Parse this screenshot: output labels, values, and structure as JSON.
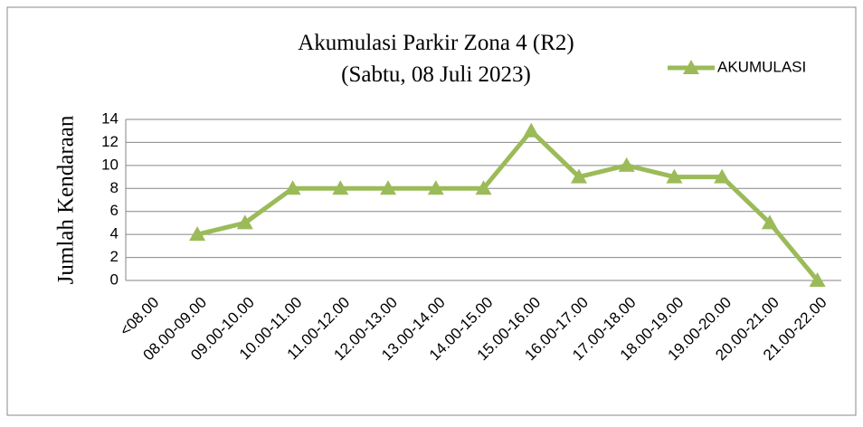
{
  "chart_data": {
    "type": "line",
    "title": "Akumulasi Parkir Zona 4 (R2)",
    "subtitle": "(Sabtu, 08 Juli 2023)",
    "y_label": "Jumlah Kendaraan",
    "categories": [
      "<08.00",
      "08.00-09.00",
      "09.00-10.00",
      "10.00-11.00",
      "11.00-12.00",
      "12.00-13.00",
      "13.00-14.00",
      "14.00-15.00",
      "15.00-16.00",
      "16.00-17.00",
      "17.00-18.00",
      "18.00-19.00",
      "19.00-20.00",
      "20.00-21.00",
      "21.00-22.00"
    ],
    "series": [
      {
        "name": "AKUMULASI",
        "color": "#9bbb59",
        "values": [
          null,
          4,
          5,
          8,
          8,
          8,
          8,
          8,
          13,
          9,
          10,
          9,
          9,
          5,
          0
        ]
      }
    ],
    "ylim": [
      0,
      14
    ],
    "yticks": [
      0,
      2,
      4,
      6,
      8,
      10,
      12,
      14
    ],
    "grid": true,
    "legend": "top-right"
  }
}
